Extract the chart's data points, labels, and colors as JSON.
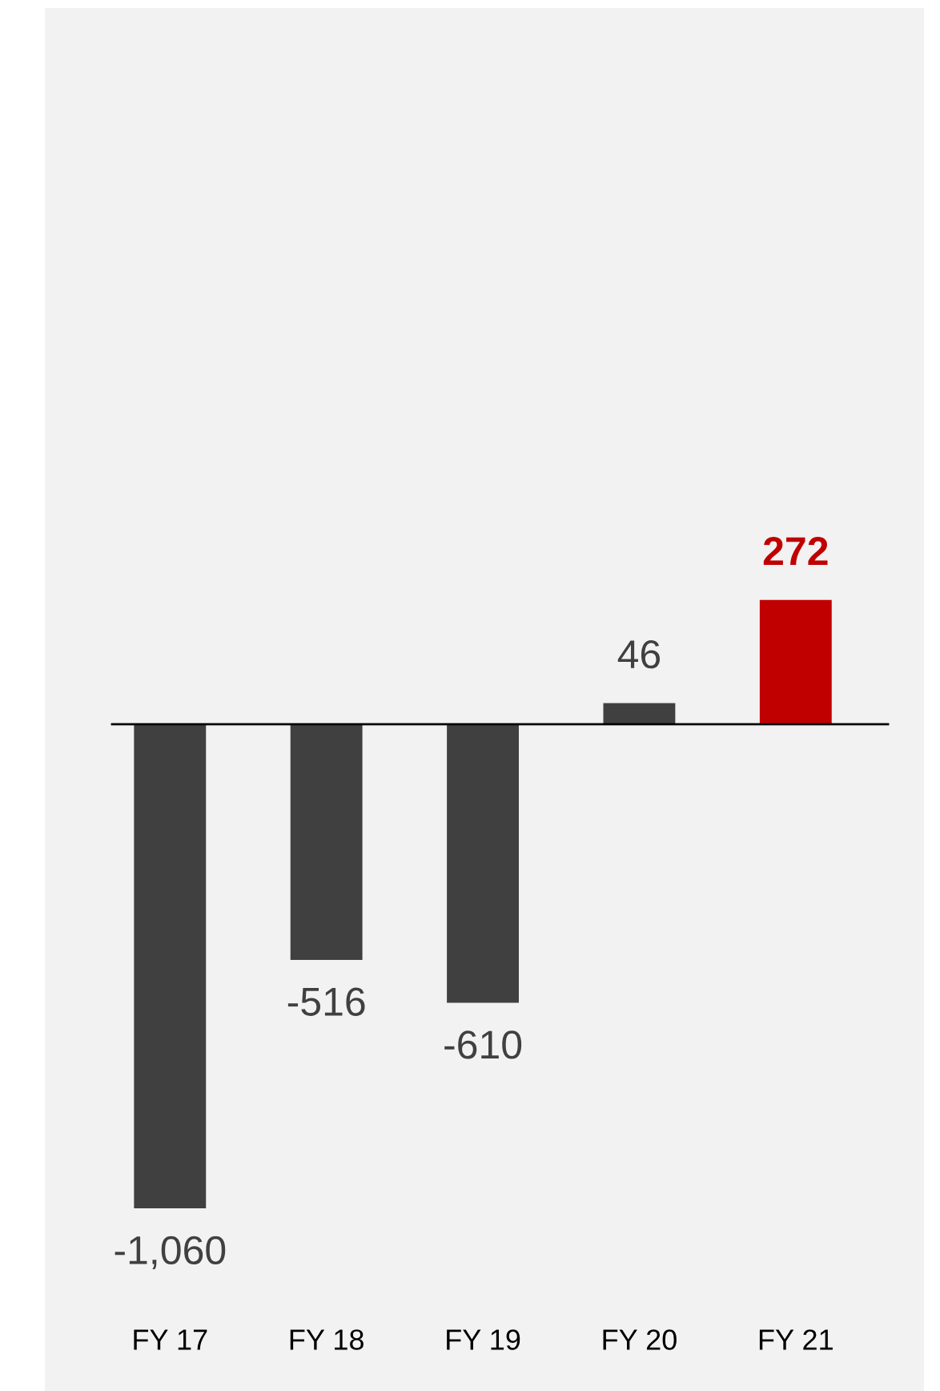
{
  "chart_data": {
    "type": "bar",
    "categories": [
      "FY 17",
      "FY 18",
      "FY 19",
      "FY 20",
      "FY 21"
    ],
    "values": [
      -1060,
      -516,
      -610,
      46,
      272
    ],
    "colors": [
      "#404040",
      "#404040",
      "#404040",
      "#404040",
      "#c00000"
    ],
    "value_labels": [
      "-1,060",
      "-516",
      "-610",
      "46",
      "272"
    ],
    "ylim": [
      -1460,
      1568
    ],
    "grid": false,
    "legend": false
  }
}
